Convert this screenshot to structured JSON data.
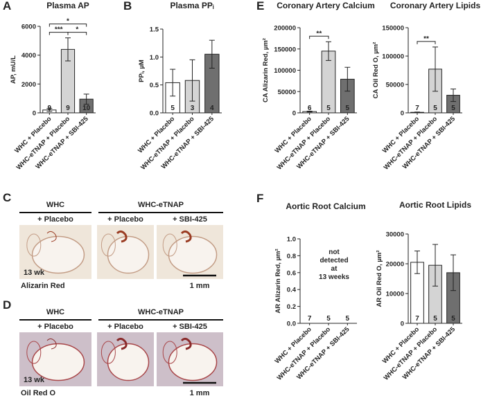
{
  "chart_data": [
    {
      "type": "bar",
      "panel": "A",
      "title": "Plasma AP",
      "y_label": "AP, mU/L",
      "categories": [
        "WHC + Placebo",
        "WHC-eTNAP + Placebo",
        "WHC-eTNAP + SBI-425"
      ],
      "values": [
        200,
        4400,
        950
      ],
      "errors": [
        100,
        800,
        350
      ],
      "n_labels": [
        "9",
        "9",
        "10"
      ],
      "colors": [
        "#ffffff",
        "#d4d4d4",
        "#6f6f6f"
      ],
      "ylim": [
        0,
        6000
      ],
      "yticks": [
        0,
        2000,
        4000,
        6000
      ],
      "brackets": [
        {
          "from": 0,
          "to": 2,
          "label": "*"
        },
        {
          "from": 0,
          "to": 1,
          "label": "***"
        },
        {
          "from": 1,
          "to": 2,
          "label": "*"
        }
      ]
    },
    {
      "type": "bar",
      "panel": "B",
      "title": "Plasma PPᵢ",
      "y_label": "PPᵢ, µM",
      "categories": [
        "WHC + Placebo",
        "WHC-eTNAP + Placebo",
        "WHC-eTNAP + SBI-425"
      ],
      "values": [
        0.54,
        0.58,
        1.05
      ],
      "errors": [
        0.24,
        0.37,
        0.25
      ],
      "n_labels": [
        "5",
        "3",
        "4"
      ],
      "colors": [
        "#ffffff",
        "#d4d4d4",
        "#6f6f6f"
      ],
      "ylim": [
        0,
        1.5
      ],
      "yticks": [
        {
          "value": 0,
          "label": "0.0"
        },
        0.5,
        {
          "value": 1,
          "label": "1.0"
        },
        1.5
      ]
    },
    {
      "type": "bar",
      "panel": "E",
      "title": "Coronary Artery Calcium",
      "y_label": "CA Alizarin Red, µm²",
      "categories": [
        "WHC + Placebo",
        "WHC-eTNAP + Placebo",
        "WHC-eTNAP + SBI-425"
      ],
      "values": [
        3000,
        145000,
        79000
      ],
      "errors": [
        1000,
        22000,
        28000
      ],
      "n_labels": [
        "6",
        "5",
        "5"
      ],
      "colors": [
        "#ffffff",
        "#d4d4d4",
        "#6f6f6f"
      ],
      "ylim": [
        0,
        200000
      ],
      "yticks": [
        0,
        50000,
        100000,
        150000,
        200000
      ],
      "brackets": [
        {
          "from": 0,
          "to": 1,
          "label": "**"
        }
      ]
    },
    {
      "type": "bar",
      "title": "Coronary Artery Lipids",
      "y_label": "CA Oil Red O, µm²",
      "categories": [
        "WHC + Placebo",
        "WHC-eTNAP + Placebo",
        "WHC-eTNAP + SBI-425"
      ],
      "values": [
        1000,
        77000,
        31000
      ],
      "errors": [
        500,
        39000,
        11000
      ],
      "n_labels": [
        "7",
        "5",
        "5"
      ],
      "colors": [
        "#ffffff",
        "#d4d4d4",
        "#6f6f6f"
      ],
      "ylim": [
        0,
        150000
      ],
      "yticks": [
        0,
        50000,
        100000,
        150000
      ],
      "brackets": [
        {
          "from": 0,
          "to": 1,
          "label": "**"
        }
      ]
    },
    {
      "type": "bar",
      "panel": "F",
      "title": "Aortic Root Calcium",
      "y_label": "AR Alizarin Red, µm²",
      "categories": [
        "WHC + Placebo",
        "WHC-eTNAP + Placebo",
        "WHC-eTNAP + SBI-425"
      ],
      "values": [
        null,
        null,
        null
      ],
      "errors": [
        null,
        null,
        null
      ],
      "n_labels": [
        "7",
        "5",
        "5"
      ],
      "colors": [
        "#ffffff",
        "#d4d4d4",
        "#6f6f6f"
      ],
      "annotation": [
        "not",
        "detected",
        "at",
        "13 weeks"
      ],
      "ylim": [
        0,
        1
      ],
      "yticks": [
        {
          "value": 0,
          "label": "0.0"
        },
        0.2,
        0.4,
        0.6,
        0.8,
        {
          "value": 1,
          "label": "1.0"
        }
      ]
    },
    {
      "type": "bar",
      "title": "Aortic Root Lipids",
      "y_label": "AR Oil Red O, µm²",
      "categories": [
        "WHC + Placebo",
        "WHC-eTNAP + Placebo",
        "WHC-eTNAP + SBI-425"
      ],
      "values": [
        20500,
        19500,
        17000
      ],
      "errors": [
        3800,
        7000,
        6000
      ],
      "n_labels": [
        "7",
        "5",
        "5"
      ],
      "colors": [
        "#ffffff",
        "#d4d4d4",
        "#6f6f6f"
      ],
      "ylim": [
        0,
        30000
      ],
      "yticks": [
        0,
        10000,
        20000,
        30000
      ]
    }
  ],
  "histology": [
    {
      "panel": "C",
      "groups": [
        "WHC",
        "WHC-eTNAP"
      ],
      "conditions": [
        "+ Placebo",
        "+ Placebo",
        "+ SBI-425"
      ],
      "age": "13 wk",
      "stain": "Alizarin Red",
      "scale": "1 mm"
    },
    {
      "panel": "D",
      "groups": [
        "WHC",
        "WHC-eTNAP"
      ],
      "conditions": [
        "+ Placebo",
        "+ Placebo",
        "+ SBI-425"
      ],
      "age": "13 wk",
      "stain": "Oil Red O",
      "scale": "1 mm"
    }
  ]
}
